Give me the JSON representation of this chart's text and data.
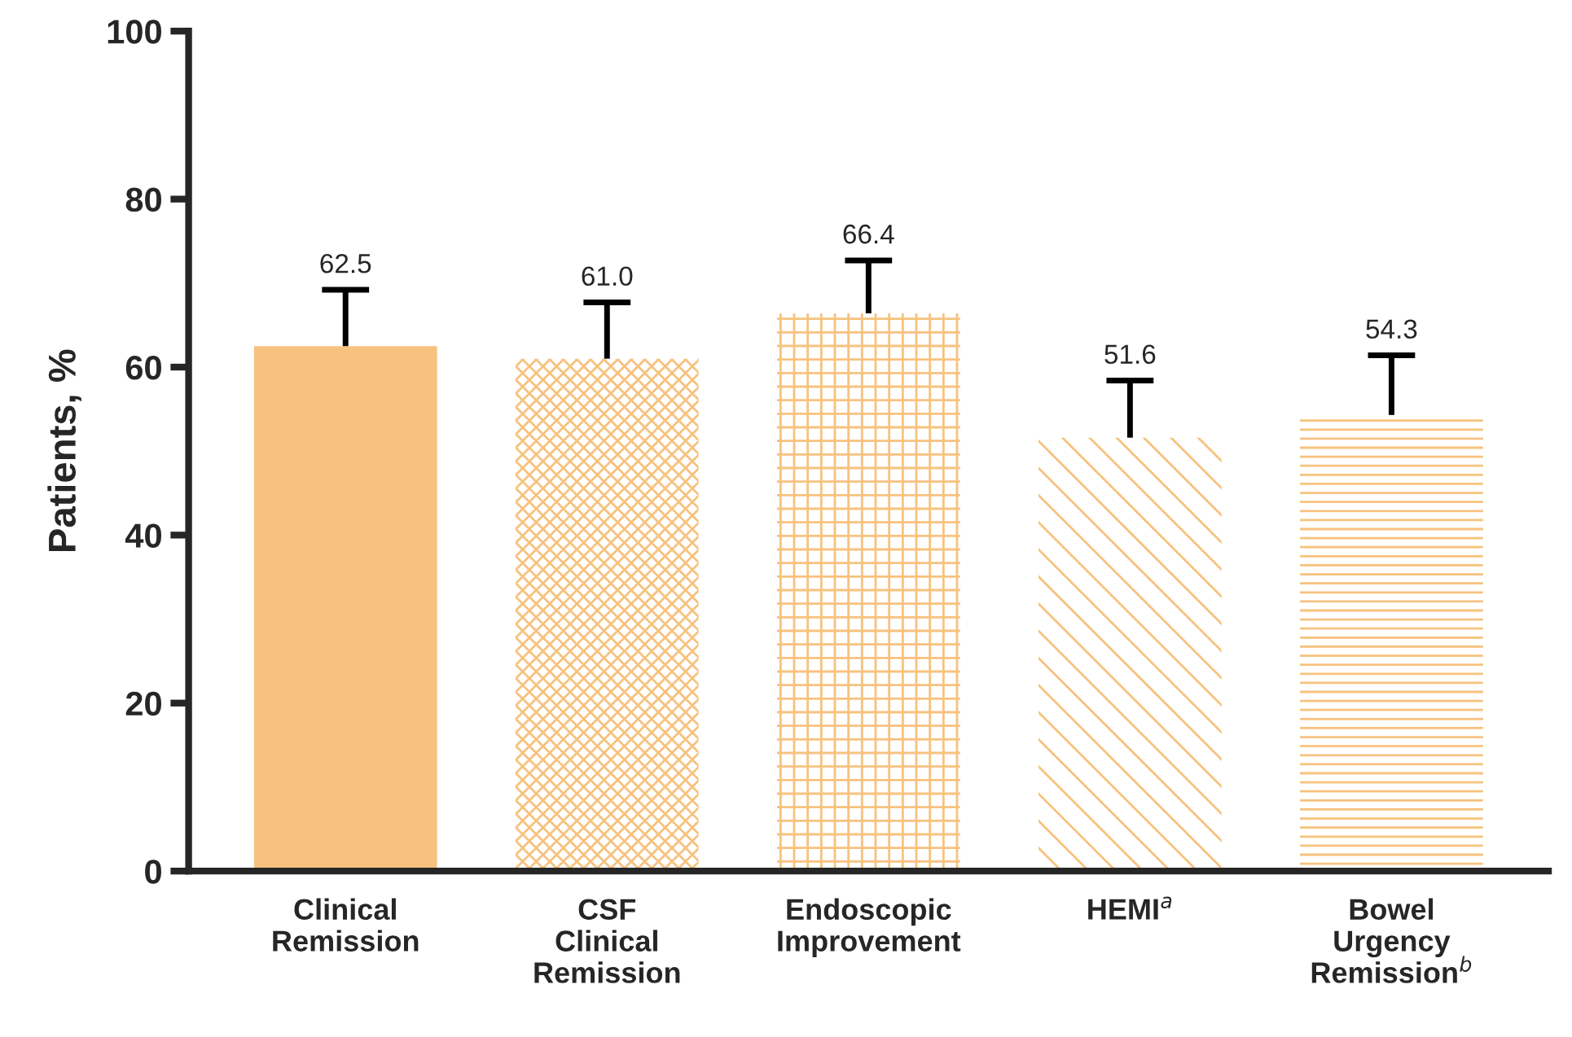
{
  "chart_data": {
    "type": "bar",
    "ylabel": "Patients, %",
    "categories": [
      "Clinical\nRemission",
      "CSF\nClinical\nRemission",
      "Endoscopic\nImprovement",
      "HEMI$^{a}$",
      "Bowel\nUrgency\nRemission$^{b}$"
    ],
    "values": [
      62.5,
      61.0,
      66.4,
      51.6,
      54.3
    ],
    "errors": [
      [
        62.5,
        69.2
      ],
      [
        61.0,
        67.7
      ],
      [
        66.4,
        72.7
      ],
      [
        51.6,
        58.4
      ],
      [
        54.3,
        61.4
      ]
    ],
    "color": "#f7c27e",
    "value_labels": [
      "62.5",
      "61.0",
      "66.4",
      "51.6",
      "54.3"
    ],
    "ylim": [
      0,
      100
    ],
    "yticks": [
      0,
      20,
      40,
      60,
      80,
      100
    ],
    "grid": false,
    "legend": false
  }
}
